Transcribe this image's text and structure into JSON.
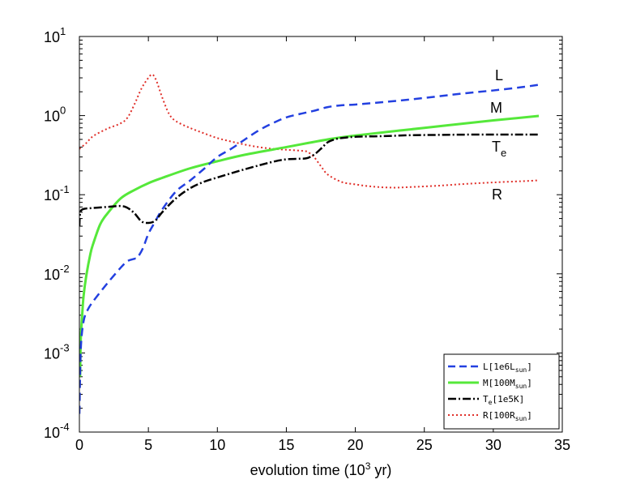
{
  "chart_data": {
    "type": "line",
    "title": "",
    "xlabel": "evolution time (10",
    "xlabel_sup": "3",
    "xlabel_suffix": " yr)",
    "ylabel": "",
    "xlim": [
      0,
      35
    ],
    "ylim_log10": [
      -4,
      1
    ],
    "yscale": "log",
    "x_ticks": [
      0,
      5,
      10,
      15,
      20,
      25,
      30,
      35
    ],
    "x_tick_labels": [
      "0",
      "5",
      "10",
      "15",
      "20",
      "25",
      "30",
      "35"
    ],
    "y_ticks_base": "10",
    "y_ticks_exp": [
      "1",
      "0",
      "-1",
      "-2",
      "-3",
      "-4"
    ],
    "grid": false,
    "legend_position": "bottom-right",
    "series": [
      {
        "name": "L",
        "legend_main": "L[1e6L",
        "legend_sub": "sun",
        "legend_end": "]",
        "color": "#2340e0",
        "style": "dashed",
        "curve_label": "L",
        "x": [
          0.0,
          0.1,
          0.3,
          0.6,
          1.0,
          2.0,
          3.0,
          3.5,
          4.0,
          4.2,
          4.6,
          5.0,
          5.5,
          6.0,
          7.0,
          8.0,
          9.0,
          10.0,
          11.0,
          12.0,
          13.0,
          14.0,
          15.0,
          16.0,
          17.0,
          18.0,
          19.0,
          20.0,
          22.0,
          24.0,
          26.0,
          28.0,
          30.0,
          32.0,
          33.3
        ],
        "y": [
          0.00017,
          0.0011,
          0.0025,
          0.0035,
          0.0045,
          0.0075,
          0.012,
          0.0145,
          0.0155,
          0.016,
          0.021,
          0.032,
          0.046,
          0.065,
          0.11,
          0.15,
          0.21,
          0.3,
          0.38,
          0.5,
          0.65,
          0.8,
          0.95,
          1.05,
          1.15,
          1.28,
          1.35,
          1.38,
          1.48,
          1.6,
          1.75,
          1.92,
          2.08,
          2.28,
          2.45
        ]
      },
      {
        "name": "M",
        "legend_main": "M[100M",
        "legend_sub": "sun",
        "legend_end": "]",
        "color": "#55e83a",
        "style": "solid",
        "curve_label": "M",
        "x": [
          0.05,
          0.1,
          0.2,
          0.3,
          0.5,
          0.8,
          1.0,
          1.5,
          2.0,
          3.0,
          4.0,
          5.0,
          6.0,
          8.0,
          10.0,
          12.0,
          15.0,
          18.0,
          20.0,
          25.0,
          30.0,
          33.3
        ],
        "y": [
          0.0005,
          0.0015,
          0.003,
          0.0052,
          0.0095,
          0.018,
          0.024,
          0.042,
          0.057,
          0.09,
          0.115,
          0.14,
          0.163,
          0.215,
          0.265,
          0.32,
          0.4,
          0.5,
          0.56,
          0.7,
          0.87,
          0.99
        ]
      },
      {
        "name": "Te",
        "legend_main": "T",
        "legend_sub": "e",
        "legend_end": "[1e5K]",
        "color": "#000000",
        "style": "dashdot",
        "curve_label": "T",
        "curve_label_sub": "e",
        "x": [
          0.0,
          0.05,
          0.2,
          0.5,
          1.0,
          2.0,
          3.0,
          3.5,
          4.0,
          4.5,
          5.0,
          5.5,
          6.0,
          7.0,
          8.0,
          9.0,
          10.0,
          12.0,
          14.0,
          15.0,
          16.0,
          16.5,
          17.0,
          17.5,
          18.0,
          18.5,
          19.0,
          20.0,
          22.0,
          24.0,
          26.0,
          28.0,
          30.0,
          32.0,
          33.3
        ],
        "y": [
          0.04,
          0.058,
          0.065,
          0.067,
          0.068,
          0.07,
          0.072,
          0.068,
          0.058,
          0.046,
          0.044,
          0.047,
          0.06,
          0.09,
          0.12,
          0.145,
          0.165,
          0.21,
          0.26,
          0.28,
          0.285,
          0.29,
          0.32,
          0.38,
          0.46,
          0.5,
          0.52,
          0.54,
          0.55,
          0.565,
          0.57,
          0.575,
          0.575,
          0.575,
          0.575
        ]
      },
      {
        "name": "R",
        "legend_main": "R[100R",
        "legend_sub": "sun",
        "legend_end": "]",
        "color": "#e0302a",
        "style": "dotted",
        "curve_label": "R",
        "x": [
          0.0,
          0.5,
          1.0,
          2.0,
          3.0,
          3.5,
          4.0,
          4.5,
          5.0,
          5.3,
          5.6,
          6.0,
          6.5,
          7.0,
          8.0,
          9.0,
          10.0,
          11.0,
          12.0,
          13.0,
          14.0,
          15.0,
          16.0,
          16.5,
          17.0,
          17.5,
          18.0,
          19.0,
          20.0,
          21.0,
          22.0,
          23.0,
          24.0,
          26.0,
          28.0,
          30.0,
          32.0,
          33.3
        ],
        "y": [
          0.38,
          0.45,
          0.55,
          0.68,
          0.8,
          0.95,
          1.4,
          2.2,
          3.0,
          3.3,
          2.7,
          1.7,
          1.05,
          0.85,
          0.7,
          0.6,
          0.52,
          0.47,
          0.43,
          0.4,
          0.38,
          0.37,
          0.36,
          0.35,
          0.3,
          0.23,
          0.18,
          0.145,
          0.135,
          0.128,
          0.124,
          0.123,
          0.125,
          0.13,
          0.137,
          0.143,
          0.148,
          0.152
        ]
      }
    ]
  }
}
